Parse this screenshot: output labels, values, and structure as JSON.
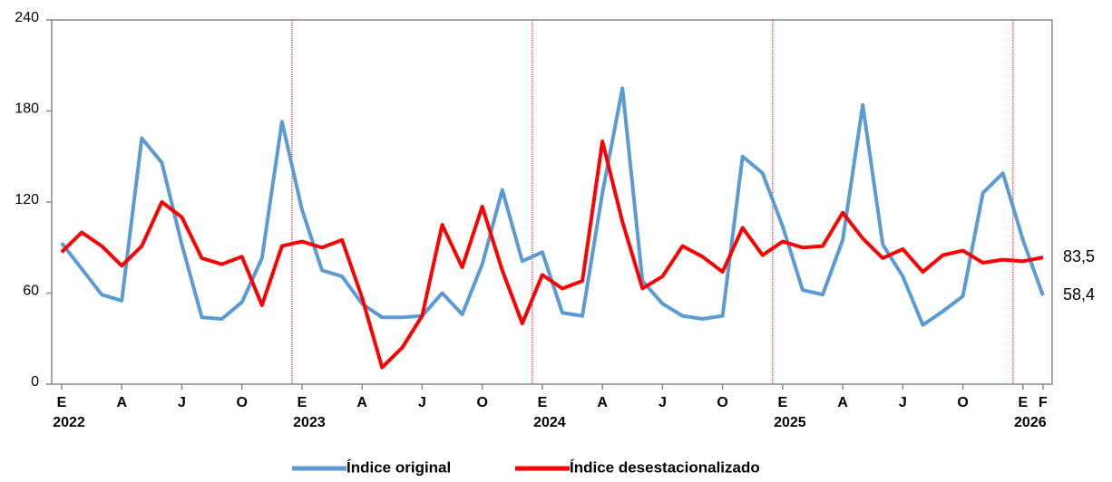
{
  "chart_data": {
    "type": "line",
    "categories": [
      "E",
      null,
      null,
      "A",
      null,
      null,
      "J",
      null,
      null,
      "O",
      null,
      null,
      "E",
      null,
      null,
      "A",
      null,
      null,
      "J",
      null,
      null,
      "O",
      null,
      null,
      "E",
      null,
      null,
      "A",
      null,
      null,
      "J",
      null,
      null,
      "O",
      null,
      null,
      "E",
      null,
      null,
      "A",
      null,
      null,
      "J",
      null,
      null,
      "O",
      null,
      null,
      "E",
      "F"
    ],
    "years": [
      "2022",
      null,
      null,
      null,
      null,
      null,
      null,
      null,
      null,
      null,
      null,
      null,
      "2023",
      null,
      null,
      null,
      null,
      null,
      null,
      null,
      null,
      null,
      null,
      null,
      "2024",
      null,
      null,
      null,
      null,
      null,
      null,
      null,
      null,
      null,
      null,
      null,
      "2025",
      null,
      null,
      null,
      null,
      null,
      null,
      null,
      null,
      null,
      null,
      null,
      "2026",
      null
    ],
    "series": [
      {
        "name": "Índice original",
        "color": "#5b9bd5",
        "values": [
          93,
          76,
          59,
          55,
          162,
          146,
          92,
          44,
          43,
          54,
          83,
          173,
          115,
          75,
          71,
          53,
          44,
          44,
          45,
          60,
          46,
          79,
          128,
          81,
          87,
          47,
          45,
          126,
          195,
          68,
          53,
          45,
          43,
          45,
          150,
          139,
          104,
          62,
          59,
          95,
          184,
          92,
          71,
          39,
          48,
          58,
          126,
          139,
          95,
          58.4
        ],
        "value_labels": [
          null,
          null,
          null,
          null,
          null,
          null,
          null,
          null,
          null,
          null,
          null,
          null,
          null,
          null,
          null,
          null,
          null,
          null,
          null,
          null,
          null,
          null,
          null,
          null,
          null,
          null,
          null,
          null,
          null,
          null,
          null,
          null,
          null,
          null,
          null,
          null,
          null,
          null,
          null,
          null,
          null,
          null,
          null,
          null,
          null,
          null,
          null,
          null,
          null,
          "58,4"
        ],
        "label_color": "#1f3a7a"
      },
      {
        "name": "Índice desestacionalizado",
        "color": "#ff0000",
        "values": [
          87,
          100,
          91,
          78,
          91,
          120,
          110,
          83,
          79,
          84,
          52,
          91,
          94,
          90,
          95,
          57,
          11,
          24,
          45,
          105,
          77,
          117,
          75,
          40,
          72,
          63,
          68,
          160,
          107,
          63,
          71,
          91,
          84,
          74,
          103,
          85,
          94,
          90,
          91,
          113,
          96,
          83,
          89,
          74,
          85,
          88,
          80,
          82,
          81,
          83.5
        ],
        "value_labels": [
          null,
          null,
          null,
          null,
          null,
          null,
          null,
          null,
          null,
          null,
          null,
          null,
          null,
          null,
          null,
          null,
          null,
          null,
          null,
          null,
          null,
          null,
          null,
          null,
          null,
          null,
          null,
          null,
          null,
          null,
          null,
          null,
          null,
          null,
          null,
          null,
          null,
          null,
          null,
          null,
          null,
          null,
          null,
          null,
          null,
          null,
          null,
          null,
          null,
          "83,5"
        ],
        "label_color": "#c00000"
      }
    ],
    "ylim": [
      0,
      240
    ],
    "yticks": [
      0,
      60,
      120,
      180,
      240
    ],
    "grid": false,
    "year_separators": true,
    "legend": "bottom"
  }
}
